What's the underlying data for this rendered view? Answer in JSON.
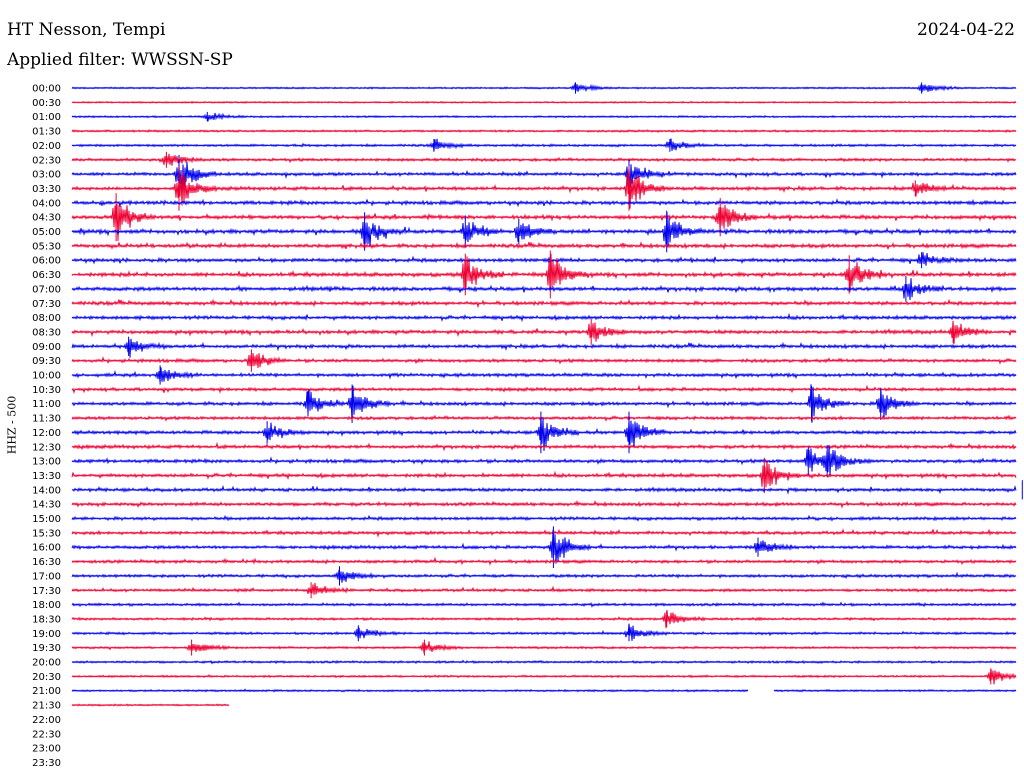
{
  "header": {
    "station": "HT Nesson, Tempi",
    "date": "2024-04-22",
    "filter": "Applied filter: WWSSN-SP",
    "channel": "HHZ - 500"
  },
  "colors": {
    "odd": "#0000ee",
    "even": "#ee0033"
  },
  "chart_data": {
    "type": "line",
    "title": "HT Nesson, Tempi",
    "ylabel": "HHZ - 500",
    "tick_labels": [
      "00:00",
      "00:30",
      "01:00",
      "01:30",
      "02:00",
      "02:30",
      "03:00",
      "03:30",
      "04:00",
      "04:30",
      "05:00",
      "05:30",
      "06:00",
      "06:30",
      "07:00",
      "07:30",
      "08:00",
      "08:30",
      "09:00",
      "09:30",
      "10:00",
      "10:30",
      "11:00",
      "11:30",
      "12:00",
      "12:30",
      "13:00",
      "13:30",
      "14:00",
      "14:30",
      "15:00",
      "15:30",
      "16:00",
      "16:30",
      "17:00",
      "17:30",
      "18:00",
      "18:30",
      "19:00",
      "19:30",
      "20:00",
      "20:30",
      "21:00",
      "21:30",
      "22:00",
      "22:30",
      "23:00",
      "23:30"
    ],
    "row_minutes": 30,
    "recorded_until": "21:35",
    "gap": {
      "row": "21:00",
      "from_min": 21.5,
      "to_min": 22.3
    },
    "trace_activity": [
      0.15,
      0.1,
      0.2,
      0.3,
      0.4,
      0.6,
      0.7,
      0.8,
      0.9,
      0.95,
      1,
      0.9,
      0.9,
      0.95,
      0.95,
      0.85,
      0.8,
      0.85,
      0.8,
      0.75,
      0.75,
      0.7,
      0.75,
      0.7,
      0.75,
      0.75,
      0.8,
      0.8,
      0.75,
      0.75,
      0.7,
      0.7,
      0.7,
      0.65,
      0.6,
      0.55,
      0.5,
      0.45,
      0.4,
      0.35,
      0.35,
      0.3,
      0.25,
      0.2
    ],
    "events": [
      {
        "row": "00:00",
        "min": 16.0,
        "amp": 0.35
      },
      {
        "row": "00:00",
        "min": 27.0,
        "amp": 0.35
      },
      {
        "row": "01:00",
        "min": 4.3,
        "amp": 0.3
      },
      {
        "row": "02:00",
        "min": 11.5,
        "amp": 0.4
      },
      {
        "row": "02:00",
        "min": 19.0,
        "amp": 0.4
      },
      {
        "row": "02:30",
        "min": 3.0,
        "amp": 0.5
      },
      {
        "row": "03:00",
        "min": 3.4,
        "amp": 1.2
      },
      {
        "row": "03:00",
        "min": 17.7,
        "amp": 0.9
      },
      {
        "row": "03:30",
        "min": 3.4,
        "amp": 1.4
      },
      {
        "row": "03:30",
        "min": 17.7,
        "amp": 1.4
      },
      {
        "row": "03:30",
        "min": 26.8,
        "amp": 0.5
      },
      {
        "row": "04:30",
        "min": 1.4,
        "amp": 1.5
      },
      {
        "row": "04:30",
        "min": 20.6,
        "amp": 1.2
      },
      {
        "row": "05:00",
        "min": 9.3,
        "amp": 1.2
      },
      {
        "row": "05:00",
        "min": 12.5,
        "amp": 1.0
      },
      {
        "row": "05:00",
        "min": 14.2,
        "amp": 0.8
      },
      {
        "row": "05:00",
        "min": 18.9,
        "amp": 1.3
      },
      {
        "row": "06:00",
        "min": 27.0,
        "amp": 0.5
      },
      {
        "row": "06:30",
        "min": 12.5,
        "amp": 1.3
      },
      {
        "row": "06:30",
        "min": 15.2,
        "amp": 1.5
      },
      {
        "row": "06:30",
        "min": 24.7,
        "amp": 1.2
      },
      {
        "row": "07:00",
        "min": 26.5,
        "amp": 0.8
      },
      {
        "row": "08:30",
        "min": 16.5,
        "amp": 0.8
      },
      {
        "row": "08:30",
        "min": 28.0,
        "amp": 0.7
      },
      {
        "row": "09:00",
        "min": 1.8,
        "amp": 0.6
      },
      {
        "row": "09:30",
        "min": 5.7,
        "amp": 0.7
      },
      {
        "row": "10:00",
        "min": 2.8,
        "amp": 0.6
      },
      {
        "row": "11:00",
        "min": 7.5,
        "amp": 0.8
      },
      {
        "row": "11:00",
        "min": 8.9,
        "amp": 1.2
      },
      {
        "row": "11:00",
        "min": 23.5,
        "amp": 1.1
      },
      {
        "row": "11:00",
        "min": 25.7,
        "amp": 1.0
      },
      {
        "row": "12:00",
        "min": 6.2,
        "amp": 0.7
      },
      {
        "row": "12:00",
        "min": 14.9,
        "amp": 1.3
      },
      {
        "row": "12:00",
        "min": 17.7,
        "amp": 1.3
      },
      {
        "row": "13:00",
        "min": 24.0,
        "amp": 1.0
      },
      {
        "row": "13:00",
        "min": 23.4,
        "amp": 0.9
      },
      {
        "row": "13:30",
        "min": 22.0,
        "amp": 1.1
      },
      {
        "row": "14:00",
        "min": 30.2,
        "amp": 0.6
      },
      {
        "row": "16:00",
        "min": 15.3,
        "amp": 1.3
      },
      {
        "row": "16:00",
        "min": 21.8,
        "amp": 0.6
      },
      {
        "row": "17:00",
        "min": 8.5,
        "amp": 0.6
      },
      {
        "row": "17:30",
        "min": 7.6,
        "amp": 0.5
      },
      {
        "row": "18:30",
        "min": 18.9,
        "amp": 0.5
      },
      {
        "row": "19:00",
        "min": 9.1,
        "amp": 0.5
      },
      {
        "row": "19:00",
        "min": 17.7,
        "amp": 0.5
      },
      {
        "row": "19:30",
        "min": 3.8,
        "amp": 0.5
      },
      {
        "row": "19:30",
        "min": 11.2,
        "amp": 0.5
      },
      {
        "row": "20:30",
        "min": 29.2,
        "amp": 0.5
      }
    ]
  }
}
